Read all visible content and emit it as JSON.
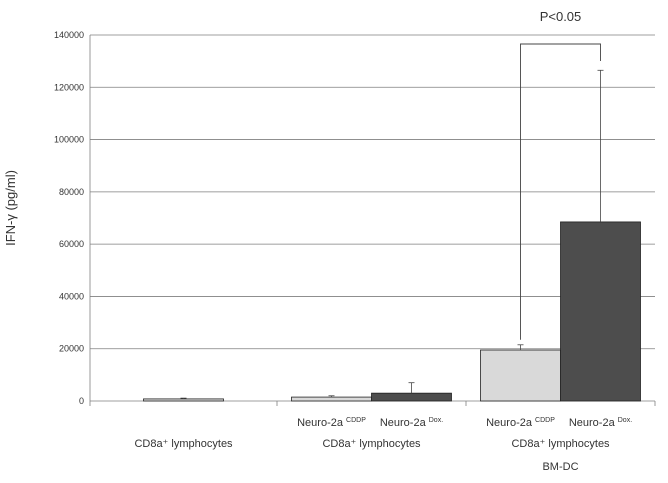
{
  "chart_data": {
    "type": "bar",
    "ylabel": "IFN-γ (pg/ml)",
    "ylim": [
      0,
      140000
    ],
    "yticks": [
      0,
      20000,
      40000,
      60000,
      80000,
      100000,
      120000,
      140000
    ],
    "grid": "horizontal",
    "legend": "none",
    "groups": [
      {
        "label_lines": [
          "CD8a⁺ lymphocytes"
        ],
        "bars": [
          {
            "label": "",
            "value": 800,
            "error": 300,
            "color": "#d9d9d9"
          }
        ]
      },
      {
        "label_lines": [
          "CD8a⁺ lymphocytes"
        ],
        "bars": [
          {
            "label": "Neuro-2a",
            "label_sup": "CDDP",
            "value": 1500,
            "error": 500,
            "color": "#d9d9d9"
          },
          {
            "label": "Neuro-2a",
            "label_sup": "Dox.",
            "value": 3000,
            "error": 4000,
            "color": "#4d4d4d"
          }
        ]
      },
      {
        "label_lines": [
          "CD8a⁺ lymphocytes",
          "BM-DC"
        ],
        "bars": [
          {
            "label": "Neuro-2a",
            "label_sup": "CDDP",
            "value": 19500,
            "error": 2000,
            "color": "#d9d9d9"
          },
          {
            "label": "Neuro-2a",
            "label_sup": "Dox.",
            "value": 68500,
            "error": 58000,
            "color": "#4d4d4d"
          }
        ]
      }
    ],
    "annotation": {
      "text": "P<0.05",
      "group": 2,
      "from_bar": 0,
      "to_bar": 1
    }
  }
}
